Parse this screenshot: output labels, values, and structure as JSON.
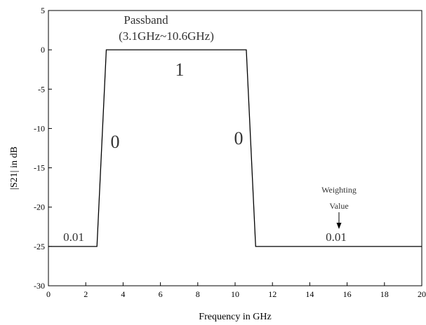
{
  "chart_data": {
    "type": "line",
    "title": "",
    "xlabel": "Frequency in GHz",
    "ylabel": "|S21| in dB",
    "xlim": [
      0,
      20
    ],
    "ylim": [
      -30,
      5
    ],
    "xticks": [
      "0",
      "2",
      "4",
      "6",
      "8",
      "10",
      "12",
      "14",
      "16",
      "18",
      "20"
    ],
    "yticks": [
      "5",
      "0",
      "-5",
      "-10",
      "-15",
      "-20",
      "-25",
      "-30"
    ],
    "grid": false,
    "series": [
      {
        "x": [
          0,
          2.6,
          3.1,
          10.6,
          11.1,
          20
        ],
        "y": [
          -25,
          -25,
          0,
          0,
          -25,
          -25
        ],
        "color": "#000000"
      }
    ],
    "annotations": [
      {
        "id": "passband",
        "text": "Passband"
      },
      {
        "id": "passband-range",
        "text": "(3.1GHz~10.6GHz)"
      },
      {
        "id": "weight-one",
        "text": "1"
      },
      {
        "id": "weight-zero-left",
        "text": "0"
      },
      {
        "id": "weight-zero-right",
        "text": "0"
      },
      {
        "id": "weight-left",
        "text": "0.01"
      },
      {
        "id": "weight-right",
        "text": "0.01"
      },
      {
        "id": "weighting",
        "text": "Weighting"
      },
      {
        "id": "value",
        "text": "Value"
      }
    ]
  }
}
